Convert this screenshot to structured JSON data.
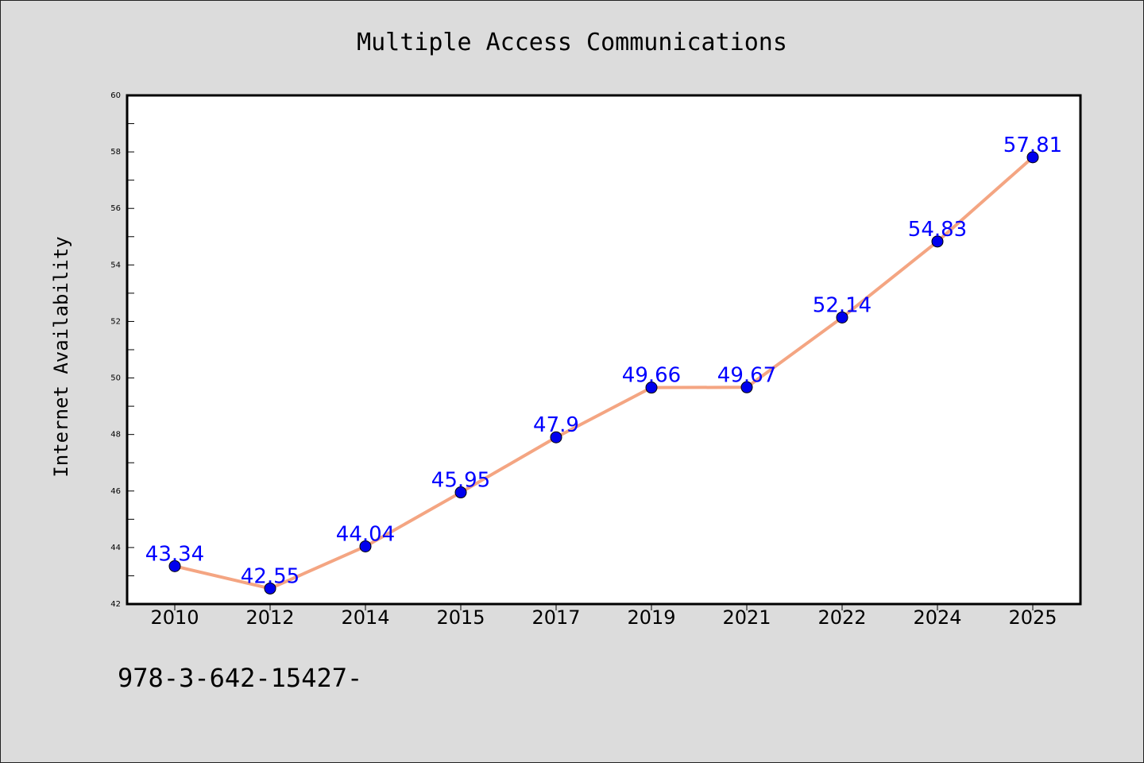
{
  "chart_data": {
    "type": "line",
    "title": "Multiple Access Communications",
    "xlabel": "",
    "ylabel": "Internet Availability",
    "categories": [
      "2010",
      "2012",
      "2014",
      "2015",
      "2017",
      "2019",
      "2021",
      "2022",
      "2024",
      "2025"
    ],
    "series": [
      {
        "values": [
          43.34,
          42.55,
          44.04,
          45.95,
          47.9,
          49.66,
          49.67,
          52.14,
          54.83,
          57.81
        ],
        "labels": [
          "43.34",
          "42.55",
          "44.04",
          "45.95",
          "47.9",
          "49.66",
          "49.67",
          "52.14",
          "54.83",
          "57.81"
        ],
        "line_color": "#f4a582",
        "marker_color": "#0000ee",
        "label_color": "#0000ff"
      }
    ],
    "ylim": [
      42,
      60
    ],
    "yticks": [
      "42",
      "44",
      "46",
      "48",
      "50",
      "52",
      "54",
      "56",
      "58",
      "60"
    ],
    "grid": false,
    "legend": "none"
  },
  "footnote": "978-3-642-15427-",
  "colors": {
    "background": "#dcdcdc",
    "plot_background": "#ffffff",
    "axis": "#000000"
  }
}
